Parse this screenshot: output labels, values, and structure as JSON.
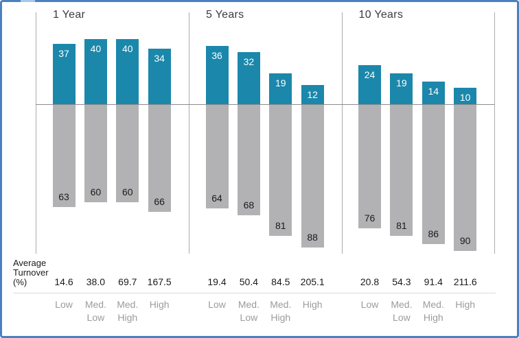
{
  "frame": {
    "border_color": "#4b80c2",
    "highlight_color": "#a9c7e8",
    "background": "#ffffff"
  },
  "chart_data": {
    "type": "bar",
    "orientation": "diverging-vertical",
    "row_label_lines": [
      "Average",
      "Turnover",
      "(%)"
    ],
    "colors": {
      "positive_bar": "#1b87ab",
      "negative_bar": "#b2b2b4",
      "positive_value_text": "#ffffff",
      "negative_value_text": "#1a1a1a",
      "group_title_text": "#3b3b3b",
      "label_text": "#1a1a1a",
      "category_text": "#9b9b9e",
      "axis_line": "#ababab",
      "baseline": "#8c8c8c",
      "separator": "#d9d9d9"
    },
    "baseline_value": 0,
    "groups": [
      {
        "title": "1 Year",
        "bars": [
          {
            "category_lines": [
              "Low"
            ],
            "up": 37,
            "down": 63,
            "turnover": "14.6"
          },
          {
            "category_lines": [
              "Med.",
              "Low"
            ],
            "up": 40,
            "down": 60,
            "turnover": "38.0"
          },
          {
            "category_lines": [
              "Med.",
              "High"
            ],
            "up": 40,
            "down": 60,
            "turnover": "69.7"
          },
          {
            "category_lines": [
              "High"
            ],
            "up": 34,
            "down": 66,
            "turnover": "167.5"
          }
        ]
      },
      {
        "title": "5 Years",
        "bars": [
          {
            "category_lines": [
              "Low"
            ],
            "up": 36,
            "down": 64,
            "turnover": "19.4"
          },
          {
            "category_lines": [
              "Med.",
              "Low"
            ],
            "up": 32,
            "down": 68,
            "turnover": "50.4"
          },
          {
            "category_lines": [
              "Med.",
              "High"
            ],
            "up": 19,
            "down": 81,
            "turnover": "84.5"
          },
          {
            "category_lines": [
              "High"
            ],
            "up": 12,
            "down": 88,
            "turnover": "205.1"
          }
        ]
      },
      {
        "title": "10 Years",
        "bars": [
          {
            "category_lines": [
              "Low"
            ],
            "up": 24,
            "down": 76,
            "turnover": "20.8"
          },
          {
            "category_lines": [
              "Med.",
              "Low"
            ],
            "up": 19,
            "down": 81,
            "turnover": "54.3"
          },
          {
            "category_lines": [
              "Med.",
              "High"
            ],
            "up": 14,
            "down": 86,
            "turnover": "91.4"
          },
          {
            "category_lines": [
              "High"
            ],
            "up": 10,
            "down": 90,
            "turnover": "211.6"
          }
        ]
      }
    ]
  }
}
